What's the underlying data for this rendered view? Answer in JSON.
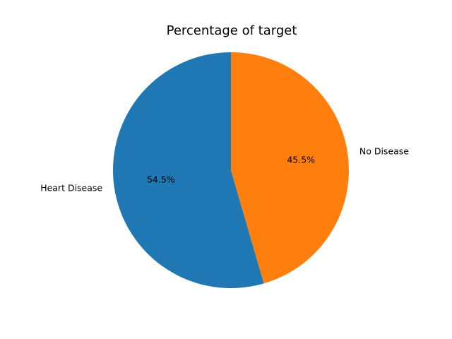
{
  "chart_data": {
    "type": "pie",
    "title": "Percentage of target",
    "slices": [
      {
        "label": "Heart Disease",
        "value": 54.5,
        "pct_label": "54.5%",
        "color": "#1f77b4"
      },
      {
        "label": "No Disease",
        "value": 45.5,
        "pct_label": "45.5%",
        "color": "#ff7f0e"
      }
    ],
    "start_angle_deg": 90,
    "direction": "counterclockwise",
    "legend": "none"
  }
}
